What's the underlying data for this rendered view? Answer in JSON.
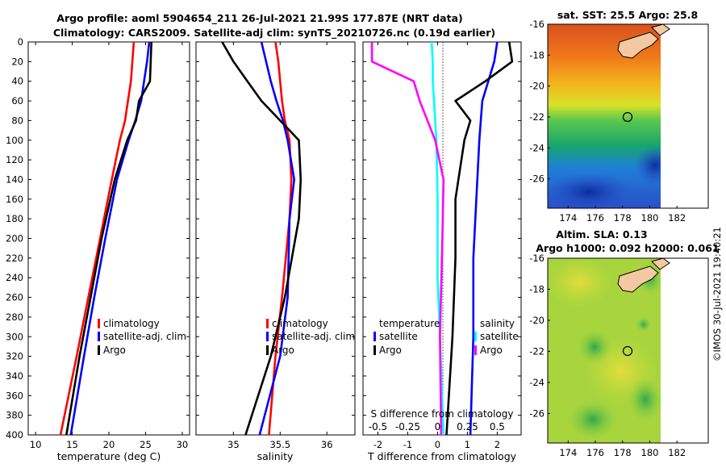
{
  "figure": {
    "title_line1": "Argo profile: aoml 5904654_211 26-Jul-2021 21.99S 177.87E (NRT data)",
    "title_line2": "Climatology: CARS2009. Satellite-adj clim: synTS_20210726.nc (0.19d earlier)",
    "stamp": "©IMOS 30-Jul-2021 19:40:21",
    "colors": {
      "climatology": "#ff0000",
      "satellite": "#0000ff",
      "argo": "#000000",
      "sat_salinity": "#00ffff",
      "argo_salinity": "#ff00ff"
    }
  },
  "chart_data": [
    {
      "type": "line",
      "panel": "temperature",
      "xlabel": "temperature (deg C)",
      "xlim": [
        9,
        31
      ],
      "ylim": [
        400,
        0
      ],
      "xticks": [
        "10",
        "15",
        "20",
        "25",
        "30"
      ],
      "yticks": [
        "0",
        "20",
        "40",
        "60",
        "80",
        "100",
        "120",
        "140",
        "160",
        "180",
        "200",
        "220",
        "240",
        "260",
        "280",
        "300",
        "320",
        "340",
        "360",
        "380",
        "400"
      ],
      "legend": [
        "climatology",
        "satellite-adj. clim",
        "Argo"
      ],
      "series": [
        {
          "name": "climatology",
          "depth": [
            0,
            20,
            40,
            60,
            80,
            100,
            140,
            200,
            260,
            320,
            400
          ],
          "values": [
            23.4,
            23.2,
            23.0,
            22.6,
            22.2,
            21.5,
            20.4,
            18.8,
            17.2,
            15.6,
            13.4
          ]
        },
        {
          "name": "satellite-adj. clim",
          "depth": [
            0,
            20,
            40,
            60,
            80,
            100,
            140,
            200,
            260,
            320,
            400
          ],
          "values": [
            25.5,
            25.2,
            24.8,
            24.4,
            23.6,
            22.7,
            21.1,
            19.5,
            18.0,
            16.6,
            14.8
          ]
        },
        {
          "name": "Argo",
          "depth": [
            0,
            20,
            40,
            60,
            80,
            100,
            140,
            200,
            260,
            320,
            400
          ],
          "values": [
            25.8,
            25.7,
            25.6,
            24.1,
            23.7,
            22.5,
            20.8,
            19.0,
            17.5,
            16.0,
            14.2
          ]
        }
      ]
    },
    {
      "type": "line",
      "panel": "salinity",
      "xlabel": "salinity",
      "xlim": [
        34.6,
        36.3
      ],
      "ylim": [
        400,
        0
      ],
      "xticks": [
        "35",
        "35.5",
        "36"
      ],
      "legend": [
        "climatology",
        "satellite-adj. clim",
        "Argo"
      ],
      "series": [
        {
          "name": "climatology",
          "depth": [
            0,
            20,
            40,
            60,
            80,
            100,
            140,
            180,
            260,
            320,
            400
          ],
          "values": [
            35.45,
            35.48,
            35.5,
            35.52,
            35.55,
            35.6,
            35.62,
            35.6,
            35.52,
            35.45,
            35.38
          ]
        },
        {
          "name": "satellite-adj. clim",
          "depth": [
            0,
            20,
            40,
            60,
            80,
            100,
            140,
            180,
            260,
            320,
            400
          ],
          "values": [
            35.3,
            35.35,
            35.4,
            35.46,
            35.53,
            35.58,
            35.65,
            35.6,
            35.58,
            35.5,
            35.28
          ]
        },
        {
          "name": "Argo",
          "depth": [
            0,
            20,
            40,
            60,
            80,
            100,
            140,
            180,
            260,
            320,
            400
          ],
          "values": [
            34.88,
            35.0,
            35.15,
            35.3,
            35.5,
            35.7,
            35.72,
            35.7,
            35.55,
            35.4,
            35.13
          ]
        }
      ]
    },
    {
      "type": "line",
      "panel": "difference",
      "xlabel": "T difference from climatology",
      "xlabel_top": "S difference from climatology",
      "xlim": [
        -2.5,
        2.8
      ],
      "ylim": [
        400,
        0
      ],
      "xticks": [
        "-2",
        "-1",
        "0",
        "1",
        "2"
      ],
      "xticks_top": [
        "-0.5",
        "-0.25",
        "0",
        "0.25",
        "0.5"
      ],
      "legend_temperature_title": "temperature",
      "legend_salinity_title": "salinity",
      "legend_temperature": [
        "satellite",
        "Argo"
      ],
      "legend_salinity": [
        "satellite",
        "Argo"
      ],
      "series": [
        {
          "name": "T satellite",
          "depth": [
            0,
            20,
            40,
            60,
            100,
            160,
            220,
            300,
            400
          ],
          "values": [
            2.0,
            1.9,
            1.7,
            1.5,
            1.4,
            1.3,
            1.2,
            1.2,
            1.1
          ]
        },
        {
          "name": "T Argo",
          "depth": [
            0,
            20,
            40,
            60,
            80,
            100,
            160,
            220,
            300,
            400
          ],
          "values": [
            2.4,
            2.5,
            1.6,
            0.6,
            1.1,
            0.9,
            0.6,
            0.6,
            0.5,
            0.3
          ]
        },
        {
          "name": "S satellite",
          "depth": [
            0,
            20,
            40,
            60,
            100,
            160,
            240,
            300,
            400
          ],
          "values": [
            -0.05,
            -0.04,
            -0.04,
            -0.03,
            -0.01,
            0.0,
            0.0,
            0.02,
            0.05
          ]
        },
        {
          "name": "S Argo",
          "depth": [
            0,
            20,
            40,
            60,
            100,
            140,
            200,
            300,
            400
          ],
          "values": [
            -0.55,
            -0.55,
            -0.2,
            -0.15,
            -0.02,
            0.05,
            0.04,
            0.02,
            0.03
          ]
        }
      ]
    },
    {
      "type": "heatmap",
      "panel": "sat_sst",
      "title": "sat. SST: 25.5 Argo: 25.8",
      "xticks": [
        "174",
        "176",
        "178",
        "180",
        "182"
      ],
      "yticks": [
        "-16",
        "-18",
        "-20",
        "-22",
        "-24",
        "-26"
      ],
      "marker": {
        "lon": 177.87,
        "lat": -21.99
      }
    },
    {
      "type": "heatmap",
      "panel": "altim_sla",
      "title_line1": "Altim. SLA: 0.13",
      "title_line2": "Argo h1000: 0.092 h2000: 0.061",
      "xticks": [
        "174",
        "176",
        "178",
        "180",
        "182"
      ],
      "yticks": [
        "-16",
        "-18",
        "-20",
        "-22",
        "-24",
        "-26"
      ],
      "marker": {
        "lon": 177.87,
        "lat": -21.99
      }
    }
  ]
}
